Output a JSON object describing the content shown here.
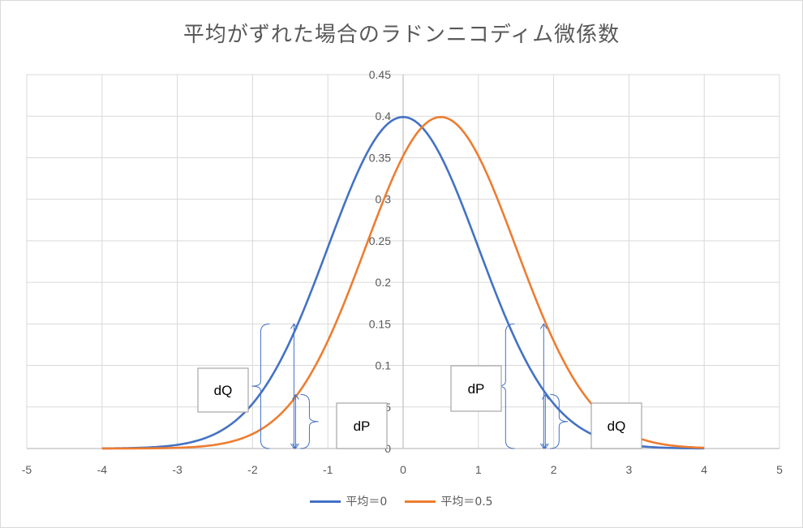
{
  "chart_data": {
    "type": "line",
    "title": "平均がずれた場合のラドンニコディム微係数",
    "xlim": [
      -5,
      5
    ],
    "ylim": [
      0,
      0.45
    ],
    "x_ticks": [
      "-5",
      "-4",
      "-3",
      "-2",
      "-1",
      "0",
      "1",
      "2",
      "3",
      "4",
      "5"
    ],
    "y_ticks": [
      "0",
      "0.05",
      "0.1",
      "0.15",
      "0.2",
      "0.25",
      "0.3",
      "0.35",
      "0.4",
      "0.45"
    ],
    "grid": true,
    "legend_position": "bottom",
    "series": [
      {
        "name": "平均＝0",
        "color": "#4472c4",
        "x": [
          -4,
          -3.5,
          -3,
          -2.5,
          -2,
          -1.5,
          -1,
          -0.5,
          0,
          0.5,
          1,
          1.5,
          2,
          2.5,
          3,
          3.5,
          4
        ],
        "y": [
          0.0001,
          0.0009,
          0.0044,
          0.0175,
          0.054,
          0.1295,
          0.242,
          0.3521,
          0.3989,
          0.3521,
          0.242,
          0.1295,
          0.054,
          0.0175,
          0.0044,
          0.0009,
          0.0001
        ]
      },
      {
        "name": "平均＝0.5",
        "color": "#ed7d31",
        "x": [
          -4,
          -3.5,
          -3,
          -2.5,
          -2,
          -1.5,
          -1,
          -0.5,
          0,
          0.5,
          1,
          1.5,
          2,
          2.5,
          3,
          3.5,
          4
        ],
        "y": [
          0.0,
          0.0001,
          0.0009,
          0.0044,
          0.0175,
          0.054,
          0.1295,
          0.242,
          0.3521,
          0.3989,
          0.3521,
          0.242,
          0.1295,
          0.054,
          0.0175,
          0.0044,
          0.0009
        ]
      }
    ],
    "annotations": [
      {
        "text": "dQ",
        "x": -1.45,
        "y_low": 0,
        "y_high": 0.15
      },
      {
        "text": "dP",
        "x": -1.45,
        "y_low": 0,
        "y_high": 0.065
      },
      {
        "text": "dP",
        "x": 1.9,
        "y_low": 0,
        "y_high": 0.15
      },
      {
        "text": "dQ",
        "x": 1.9,
        "y_low": 0,
        "y_high": 0.065
      }
    ]
  }
}
